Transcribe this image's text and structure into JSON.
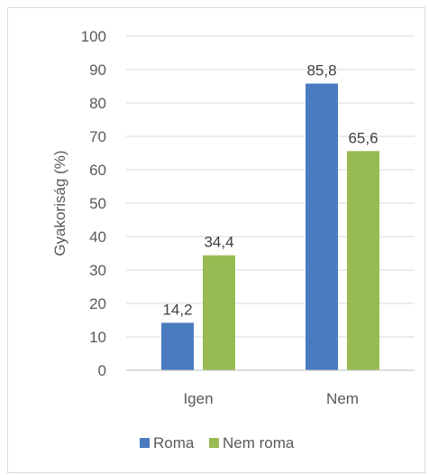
{
  "chart_data": {
    "type": "bar",
    "title": "",
    "xlabel": "",
    "ylabel": "Gyakoriság (%)",
    "ylim": [
      0,
      100
    ],
    "yticks": [
      0,
      10,
      20,
      30,
      40,
      50,
      60,
      70,
      80,
      90,
      100
    ],
    "grid": true,
    "legend_position": "bottom",
    "categories": [
      "Igen",
      "Nem"
    ],
    "series": [
      {
        "name": "Roma",
        "values": [
          14.2,
          85.8
        ],
        "labels": [
          "14,2",
          "85,8"
        ],
        "color": "#4a7bc0"
      },
      {
        "name": "Nem roma",
        "values": [
          34.4,
          65.6
        ],
        "labels": [
          "34,4",
          "65,6"
        ],
        "color": "#97bb52"
      }
    ]
  }
}
